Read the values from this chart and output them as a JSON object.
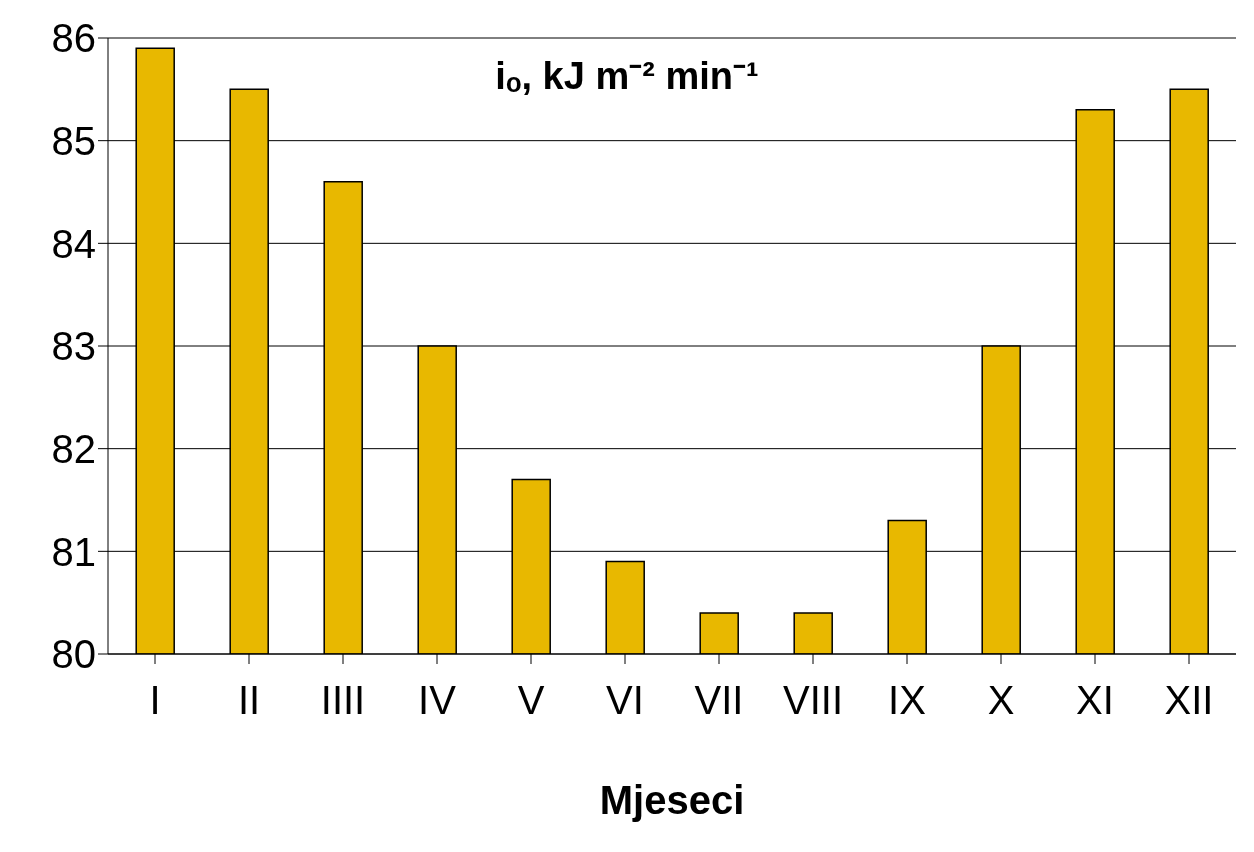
{
  "chart_data": {
    "type": "bar",
    "title": "iₒ, kJ m⁻² min⁻¹",
    "xlabel": "Mjeseci",
    "categories": [
      "I",
      "II",
      "IIII",
      "IV",
      "V",
      "VI",
      "VII",
      "VIII",
      "IX",
      "X",
      "XI",
      "XII"
    ],
    "values": [
      85.9,
      85.5,
      84.6,
      83.0,
      81.7,
      80.9,
      80.4,
      80.4,
      81.3,
      83.0,
      85.3,
      85.5
    ],
    "color": "#e8b800",
    "ylim": [
      80,
      86
    ],
    "yticks": [
      80,
      81,
      82,
      83,
      84,
      85,
      86
    ],
    "grid": "y"
  }
}
